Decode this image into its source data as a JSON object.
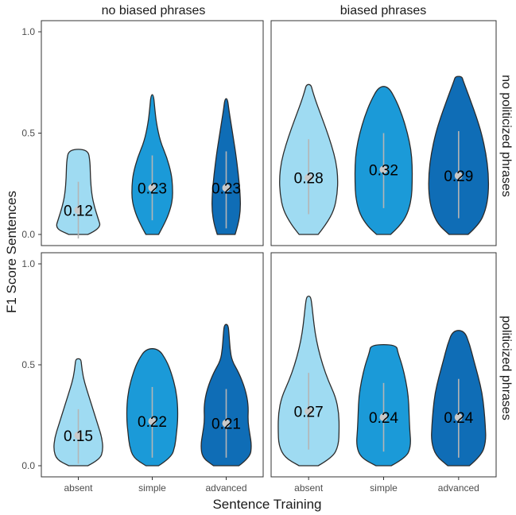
{
  "chart_data": {
    "type": "violin",
    "ylabel": "F1 Score Sentences",
    "xlabel": "Sentence Training",
    "categories": [
      "absent",
      "simple",
      "advanced"
    ],
    "col_facets": [
      "no biased phrases",
      "biased phrases"
    ],
    "row_facets": [
      "no politicized phrases",
      "politicized phrases"
    ],
    "ylim": [
      0,
      1
    ],
    "yticks": [
      "0.0",
      "0.5",
      "1.0"
    ],
    "colors": {
      "absent": "#9fdbf2",
      "simple": "#1b9ad8",
      "advanced": "#0f6db6"
    },
    "panels": [
      {
        "row": 0,
        "col": 0,
        "violins": [
          {
            "category": "absent",
            "label": "0.12",
            "median": 0.12,
            "q_low": -0.02,
            "q_high": 0.26,
            "min": 0.0,
            "max": 0.42,
            "profile": [
              [
                0,
                0.3
              ],
              [
                0.03,
                0.72
              ],
              [
                0.08,
                0.62
              ],
              [
                0.14,
                0.5
              ],
              [
                0.2,
                0.42
              ],
              [
                0.28,
                0.38
              ],
              [
                0.36,
                0.37
              ],
              [
                0.42,
                0.3
              ]
            ]
          },
          {
            "category": "simple",
            "label": "0.23",
            "median": 0.23,
            "q_low": 0.07,
            "q_high": 0.39,
            "min": 0.0,
            "max": 0.69,
            "profile": [
              [
                0,
                0.2
              ],
              [
                0.04,
                0.34
              ],
              [
                0.1,
                0.52
              ],
              [
                0.17,
                0.64
              ],
              [
                0.24,
                0.64
              ],
              [
                0.3,
                0.6
              ],
              [
                0.38,
                0.46
              ],
              [
                0.46,
                0.25
              ],
              [
                0.55,
                0.13
              ],
              [
                0.62,
                0.08
              ],
              [
                0.69,
                0.04
              ]
            ]
          },
          {
            "category": "advanced",
            "label": "0.23",
            "median": 0.23,
            "q_low": 0.03,
            "q_high": 0.41,
            "min": 0.0,
            "max": 0.67,
            "profile": [
              [
                0,
                0.28
              ],
              [
                0.05,
                0.38
              ],
              [
                0.12,
                0.45
              ],
              [
                0.2,
                0.44
              ],
              [
                0.3,
                0.38
              ],
              [
                0.4,
                0.3
              ],
              [
                0.48,
                0.22
              ],
              [
                0.56,
                0.14
              ],
              [
                0.62,
                0.08
              ],
              [
                0.67,
                0.04
              ]
            ]
          }
        ]
      },
      {
        "row": 0,
        "col": 1,
        "violins": [
          {
            "category": "absent",
            "label": "0.28",
            "median": 0.28,
            "q_low": 0.1,
            "q_high": 0.47,
            "min": 0.0,
            "max": 0.74,
            "profile": [
              [
                0,
                0.3
              ],
              [
                0.05,
                0.55
              ],
              [
                0.12,
                0.8
              ],
              [
                0.2,
                0.9
              ],
              [
                0.28,
                0.92
              ],
              [
                0.36,
                0.86
              ],
              [
                0.44,
                0.72
              ],
              [
                0.52,
                0.55
              ],
              [
                0.6,
                0.36
              ],
              [
                0.66,
                0.22
              ],
              [
                0.71,
                0.12
              ],
              [
                0.74,
                0.07
              ]
            ]
          },
          {
            "category": "simple",
            "label": "0.32",
            "median": 0.32,
            "q_low": 0.13,
            "q_high": 0.5,
            "min": 0.0,
            "max": 0.73,
            "profile": [
              [
                0,
                0.22
              ],
              [
                0.04,
                0.5
              ],
              [
                0.1,
                0.75
              ],
              [
                0.18,
                0.88
              ],
              [
                0.26,
                0.9
              ],
              [
                0.34,
                0.9
              ],
              [
                0.42,
                0.86
              ],
              [
                0.5,
                0.75
              ],
              [
                0.58,
                0.6
              ],
              [
                0.66,
                0.4
              ],
              [
                0.73,
                0.15
              ]
            ]
          },
          {
            "category": "advanced",
            "label": "0.29",
            "median": 0.29,
            "q_low": 0.08,
            "q_high": 0.51,
            "min": 0.0,
            "max": 0.78,
            "profile": [
              [
                0,
                0.3
              ],
              [
                0.05,
                0.65
              ],
              [
                0.12,
                0.85
              ],
              [
                0.2,
                0.94
              ],
              [
                0.3,
                0.94
              ],
              [
                0.4,
                0.86
              ],
              [
                0.5,
                0.72
              ],
              [
                0.58,
                0.56
              ],
              [
                0.65,
                0.4
              ],
              [
                0.71,
                0.26
              ],
              [
                0.76,
                0.14
              ],
              [
                0.78,
                0.1
              ]
            ]
          }
        ]
      },
      {
        "row": 1,
        "col": 0,
        "violins": [
          {
            "category": "absent",
            "label": "0.15",
            "median": 0.15,
            "q_low": 0.01,
            "q_high": 0.28,
            "min": 0.0,
            "max": 0.53,
            "profile": [
              [
                0,
                0.3
              ],
              [
                0.03,
                0.68
              ],
              [
                0.08,
                0.78
              ],
              [
                0.14,
                0.74
              ],
              [
                0.2,
                0.62
              ],
              [
                0.26,
                0.5
              ],
              [
                0.32,
                0.38
              ],
              [
                0.38,
                0.26
              ],
              [
                0.44,
                0.15
              ],
              [
                0.5,
                0.1
              ],
              [
                0.53,
                0.08
              ]
            ]
          },
          {
            "category": "simple",
            "label": "0.22",
            "median": 0.22,
            "q_low": 0.04,
            "q_high": 0.39,
            "min": 0.0,
            "max": 0.58,
            "profile": [
              [
                0,
                0.2
              ],
              [
                0.04,
                0.6
              ],
              [
                0.1,
                0.72
              ],
              [
                0.16,
                0.76
              ],
              [
                0.22,
                0.8
              ],
              [
                0.3,
                0.8
              ],
              [
                0.38,
                0.74
              ],
              [
                0.46,
                0.6
              ],
              [
                0.52,
                0.45
              ],
              [
                0.58,
                0.2
              ]
            ]
          },
          {
            "category": "advanced",
            "label": "0.21",
            "median": 0.21,
            "q_low": 0.04,
            "q_high": 0.38,
            "min": 0.0,
            "max": 0.7,
            "profile": [
              [
                0,
                0.4
              ],
              [
                0.04,
                0.75
              ],
              [
                0.1,
                0.8
              ],
              [
                0.16,
                0.74
              ],
              [
                0.22,
                0.68
              ],
              [
                0.3,
                0.7
              ],
              [
                0.38,
                0.6
              ],
              [
                0.46,
                0.4
              ],
              [
                0.52,
                0.18
              ],
              [
                0.58,
                0.12
              ],
              [
                0.65,
                0.09
              ],
              [
                0.7,
                0.06
              ]
            ]
          }
        ]
      },
      {
        "row": 1,
        "col": 1,
        "violins": [
          {
            "category": "absent",
            "label": "0.27",
            "median": 0.27,
            "q_low": 0.08,
            "q_high": 0.46,
            "min": 0.0,
            "max": 0.84,
            "profile": [
              [
                0,
                0.3
              ],
              [
                0.04,
                0.75
              ],
              [
                0.1,
                0.94
              ],
              [
                0.18,
                0.96
              ],
              [
                0.26,
                0.95
              ],
              [
                0.34,
                0.85
              ],
              [
                0.42,
                0.62
              ],
              [
                0.5,
                0.44
              ],
              [
                0.58,
                0.3
              ],
              [
                0.66,
                0.2
              ],
              [
                0.74,
                0.14
              ],
              [
                0.8,
                0.1
              ],
              [
                0.84,
                0.06
              ]
            ]
          },
          {
            "category": "simple",
            "label": "0.24",
            "median": 0.24,
            "q_low": 0.07,
            "q_high": 0.41,
            "min": 0.0,
            "max": 0.6,
            "profile": [
              [
                0,
                0.24
              ],
              [
                0.04,
                0.72
              ],
              [
                0.1,
                0.86
              ],
              [
                0.18,
                0.82
              ],
              [
                0.26,
                0.8
              ],
              [
                0.34,
                0.78
              ],
              [
                0.42,
                0.7
              ],
              [
                0.5,
                0.58
              ],
              [
                0.56,
                0.45
              ],
              [
                0.6,
                0.4
              ]
            ]
          },
          {
            "category": "advanced",
            "label": "0.24",
            "median": 0.24,
            "q_low": 0.04,
            "q_high": 0.43,
            "min": 0.0,
            "max": 0.67,
            "profile": [
              [
                0,
                0.34
              ],
              [
                0.05,
                0.72
              ],
              [
                0.12,
                0.86
              ],
              [
                0.2,
                0.84
              ],
              [
                0.28,
                0.8
              ],
              [
                0.36,
                0.74
              ],
              [
                0.44,
                0.62
              ],
              [
                0.52,
                0.48
              ],
              [
                0.6,
                0.35
              ],
              [
                0.67,
                0.18
              ]
            ]
          }
        ]
      }
    ]
  }
}
